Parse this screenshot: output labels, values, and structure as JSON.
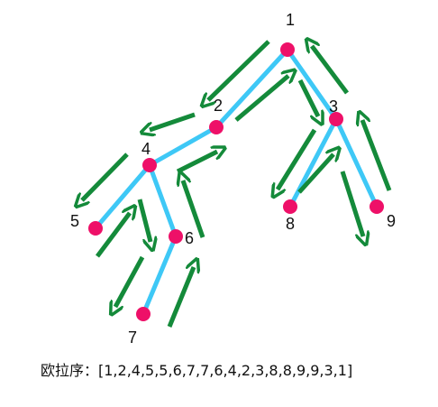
{
  "colors": {
    "edge": "#3EC8F6",
    "node": "#EE1068",
    "arrow": "#148A3A",
    "text": "#111111",
    "background": "#FFFFFF"
  },
  "tree": {
    "nodes": [
      {
        "id": "1",
        "label": "1"
      },
      {
        "id": "2",
        "label": "2"
      },
      {
        "id": "3",
        "label": "3"
      },
      {
        "id": "4",
        "label": "4"
      },
      {
        "id": "5",
        "label": "5"
      },
      {
        "id": "6",
        "label": "6"
      },
      {
        "id": "7",
        "label": "7"
      },
      {
        "id": "8",
        "label": "8"
      },
      {
        "id": "9",
        "label": "9"
      }
    ],
    "edges": [
      {
        "from": "1",
        "to": "2"
      },
      {
        "from": "1",
        "to": "3"
      },
      {
        "from": "2",
        "to": "4"
      },
      {
        "from": "4",
        "to": "5"
      },
      {
        "from": "4",
        "to": "6"
      },
      {
        "from": "6",
        "to": "7"
      },
      {
        "from": "3",
        "to": "8"
      },
      {
        "from": "3",
        "to": "9"
      }
    ],
    "traversal_arrows": [
      {
        "from": "1",
        "to": "2",
        "direction": "down"
      },
      {
        "from": "2",
        "to": "1",
        "direction": "up"
      },
      {
        "from": "2",
        "to": "4",
        "direction": "down"
      },
      {
        "from": "4",
        "to": "2",
        "direction": "up"
      },
      {
        "from": "4",
        "to": "5",
        "direction": "down"
      },
      {
        "from": "5",
        "to": "4",
        "direction": "up"
      },
      {
        "from": "4",
        "to": "6",
        "direction": "down"
      },
      {
        "from": "6",
        "to": "4",
        "direction": "up"
      },
      {
        "from": "6",
        "to": "7",
        "direction": "down"
      },
      {
        "from": "7",
        "to": "6",
        "direction": "up"
      },
      {
        "from": "1",
        "to": "3",
        "direction": "down"
      },
      {
        "from": "3",
        "to": "1",
        "direction": "up"
      },
      {
        "from": "3",
        "to": "8",
        "direction": "down"
      },
      {
        "from": "8",
        "to": "3",
        "direction": "up"
      },
      {
        "from": "3",
        "to": "9",
        "direction": "down"
      },
      {
        "from": "9",
        "to": "3",
        "direction": "up"
      }
    ]
  },
  "caption": {
    "text": "欧拉序：[1,2,4,5,5,6,7,7,6,4,2,3,8,8,9,9,3,1]"
  }
}
